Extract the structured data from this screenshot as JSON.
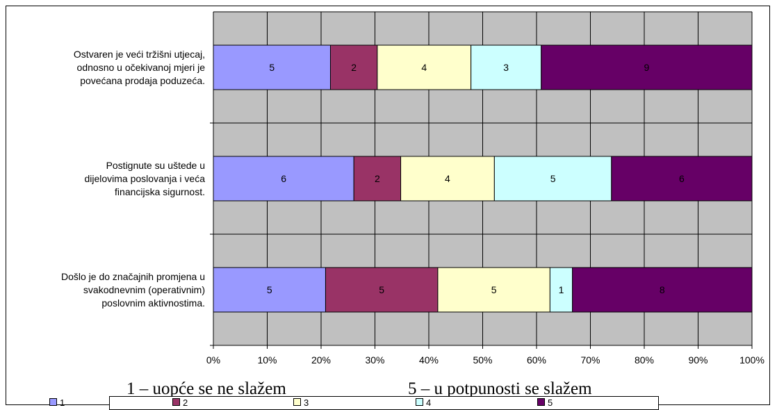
{
  "chart_data": {
    "type": "bar",
    "orientation": "horizontal",
    "stacked": "percent",
    "categories": [
      [
        "Ostvaren je veći tržišni utjecaj,",
        "odnosno u očekivanoj mjeri je",
        "povećana prodaja poduzeća."
      ],
      [
        "Postignute su uštede u",
        "dijelovima poslovanja i veća",
        "financijska sigurnost."
      ],
      [
        "Došlo je do značajnih promjena u",
        "svakodnevnim (operativnim)",
        "poslovnim aktivnostima."
      ]
    ],
    "series": [
      {
        "name": "1",
        "color": "#9999FF",
        "values": [
          5,
          6,
          5
        ]
      },
      {
        "name": "2",
        "color": "#993366",
        "values": [
          2,
          2,
          5
        ]
      },
      {
        "name": "3",
        "color": "#FFFFCC",
        "values": [
          4,
          4,
          5
        ]
      },
      {
        "name": "4",
        "color": "#CCFFFF",
        "values": [
          3,
          5,
          1
        ]
      },
      {
        "name": "5",
        "color": "#660066",
        "values": [
          9,
          6,
          8
        ]
      }
    ],
    "x_ticks": [
      "0%",
      "10%",
      "20%",
      "30%",
      "40%",
      "50%",
      "60%",
      "70%",
      "80%",
      "90%",
      "100%"
    ],
    "xlim": [
      0,
      100
    ],
    "grid": true,
    "plot_background": "#C0C0C0",
    "legend_position": "bottom",
    "notes": [
      "1 – uopće se ne slažem",
      "5 – u potpunosti se slažem"
    ]
  }
}
